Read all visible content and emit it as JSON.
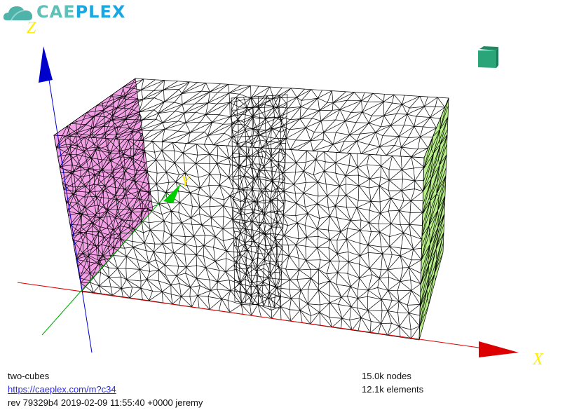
{
  "logo": {
    "part1": "CAE",
    "part2": "PLEX",
    "colors": {
      "cloud": "#4fb3aa",
      "text1": "#5fc0b8",
      "text2": "#1aa6e0"
    }
  },
  "axes": {
    "x": {
      "label": "X",
      "color": "#dd0000"
    },
    "y": {
      "label": "Y",
      "color": "#00aa00"
    },
    "z": {
      "label": "Z",
      "color": "#0000cc"
    },
    "label_color": "#ffee00"
  },
  "mesh": {
    "left_face_color": "#f4a0e6",
    "right_face_color": "#b8f08a",
    "edge_color": "#000000"
  },
  "view_cube": {
    "icon": "view-cube-icon",
    "color": "#2aa57a"
  },
  "info": {
    "model_name": "two-cubes",
    "link": "https://caeplex.com/m?c34",
    "revision": "rev 79329b4 2019-02-09 11:55:40 +0000 jeremy",
    "nodes": "15.0k nodes",
    "elements": "12.1k elements"
  }
}
